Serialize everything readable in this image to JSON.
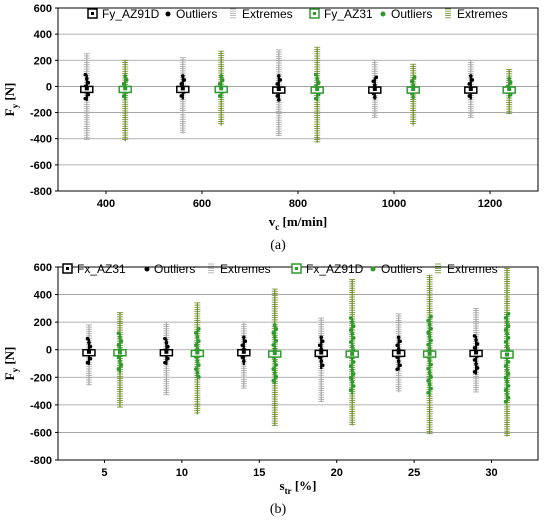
{
  "chart_data": [
    {
      "type": "box",
      "panel_label": "(a)",
      "xlabel": "v",
      "xlabel_sub": "c",
      "xlabel_unit": " [m/min]",
      "ylabel": "F",
      "ylabel_sub": "y",
      "ylabel_unit": " [N]",
      "ylim": [
        -800,
        600
      ],
      "yticks": [
        -800,
        -600,
        -400,
        -200,
        0,
        200,
        400,
        600
      ],
      "xlim": [
        300,
        1300
      ],
      "xticks": [
        400,
        600,
        800,
        1000,
        1200
      ],
      "grid": "horizontal",
      "legend_position": "top",
      "legend_labels": [
        "Fy_AZ91D",
        "Outliers",
        "Extremes",
        "Fy_AZ31",
        "Outliers",
        "Extremes"
      ],
      "series": [
        {
          "name": "Fy_AZ91D",
          "color": "#000000",
          "extreme_color": "#a8a8a8",
          "x": [
            360,
            560,
            760,
            960,
            1160
          ],
          "median": [
            -15,
            -15,
            -20,
            -20,
            -20
          ],
          "box": [
            [
              -30,
              0
            ],
            [
              -30,
              0
            ],
            [
              -35,
              -5
            ],
            [
              -35,
              -5
            ],
            [
              -35,
              -5
            ]
          ],
          "outliers": [
            [
              -110,
              90
            ],
            [
              -100,
              80
            ],
            [
              -110,
              80
            ],
            [
              -100,
              70
            ],
            [
              -100,
              80
            ]
          ],
          "extremes": [
            [
              -410,
              250
            ],
            [
              -360,
              220
            ],
            [
              -380,
              280
            ],
            [
              -240,
              200
            ],
            [
              -240,
              200
            ]
          ]
        },
        {
          "name": "Fy_AZ31",
          "color": "#2e9a2e",
          "extreme_color": "#6b8e23",
          "x": [
            440,
            640,
            840,
            1040,
            1240
          ],
          "median": [
            -15,
            -15,
            -20,
            -20,
            -20
          ],
          "box": [
            [
              -30,
              0
            ],
            [
              -30,
              0
            ],
            [
              -35,
              -5
            ],
            [
              -35,
              -5
            ],
            [
              -35,
              -5
            ]
          ],
          "outliers": [
            [
              -100,
              80
            ],
            [
              -90,
              80
            ],
            [
              -110,
              90
            ],
            [
              -90,
              70
            ],
            [
              -90,
              60
            ]
          ],
          "extremes": [
            [
              -420,
              200
            ],
            [
              -300,
              270
            ],
            [
              -430,
              300
            ],
            [
              -300,
              170
            ],
            [
              -210,
              130
            ]
          ]
        }
      ]
    },
    {
      "type": "box",
      "panel_label": "(b)",
      "xlabel": "s",
      "xlabel_sub": "tr",
      "xlabel_unit": " [%]",
      "ylabel": "F",
      "ylabel_sub": "y",
      "ylabel_unit": " [N]",
      "ylim": [
        -800,
        600
      ],
      "yticks": [
        -800,
        -600,
        -400,
        -200,
        0,
        200,
        400,
        600
      ],
      "xlim": [
        2,
        33
      ],
      "xticks": [
        5,
        10,
        15,
        20,
        25,
        30
      ],
      "grid": "horizontal",
      "legend_position": "top",
      "legend_labels": [
        "Fx_AZ31",
        "Outliers",
        "Extremes",
        "Fx_AZ91D",
        "Outliers",
        "Extremes"
      ],
      "series": [
        {
          "name": "Fx_AZ31",
          "color": "#000000",
          "extreme_color": "#a8a8a8",
          "x": [
            4,
            9,
            14,
            19,
            24,
            29
          ],
          "median": [
            -15,
            -15,
            -15,
            -20,
            -20,
            -20
          ],
          "box": [
            [
              -30,
              0
            ],
            [
              -30,
              0
            ],
            [
              -30,
              0
            ],
            [
              -35,
              -5
            ],
            [
              -35,
              -5
            ],
            [
              -35,
              -5
            ]
          ],
          "outliers": [
            [
              -110,
              80
            ],
            [
              -110,
              80
            ],
            [
              -110,
              90
            ],
            [
              -140,
              90
            ],
            [
              -150,
              90
            ],
            [
              -180,
              100
            ]
          ],
          "extremes": [
            [
              -260,
              180
            ],
            [
              -330,
              200
            ],
            [
              -280,
              200
            ],
            [
              -380,
              230
            ],
            [
              -310,
              260
            ],
            [
              -310,
              300
            ]
          ]
        },
        {
          "name": "Fx_AZ91D",
          "color": "#2e9a2e",
          "extreme_color": "#6b8e23",
          "x": [
            6,
            11,
            16,
            21,
            26,
            31
          ],
          "median": [
            -20,
            -20,
            -25,
            -30,
            -30,
            -35
          ],
          "box": [
            [
              -35,
              0
            ],
            [
              -35,
              -5
            ],
            [
              -40,
              -10
            ],
            [
              -45,
              -10
            ],
            [
              -50,
              -10
            ],
            [
              -60,
              -10
            ]
          ],
          "outliers": [
            [
              -170,
              120
            ],
            [
              -200,
              150
            ],
            [
              -250,
              180
            ],
            [
              -320,
              230
            ],
            [
              -340,
              240
            ],
            [
              -380,
              260
            ]
          ],
          "extremes": [
            [
              -420,
              270
            ],
            [
              -470,
              340
            ],
            [
              -550,
              440
            ],
            [
              -550,
              510
            ],
            [
              -610,
              540
            ],
            [
              -630,
              590
            ]
          ]
        }
      ]
    }
  ]
}
